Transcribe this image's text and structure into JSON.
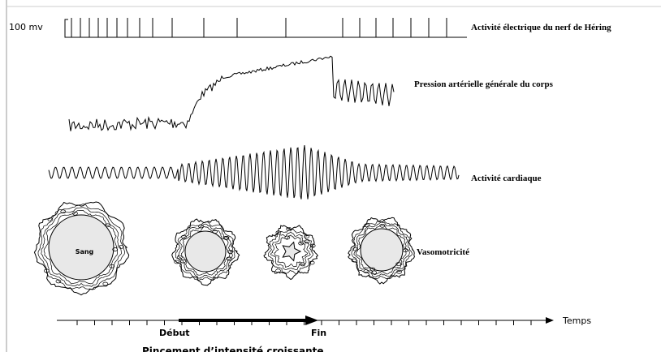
{
  "labels": {
    "scale": "100 mv",
    "nerve": "Activité électrique du nerf de Héring",
    "pressure": "Pression artérielle générale du corps",
    "cardiac": "Activité cardiaque",
    "blood": "Sang",
    "vasomotor": "Vasomotricité",
    "time": "Temps",
    "start": "Début",
    "end": "Fin",
    "pinch": "Pincement d’intensité croissante"
  }
}
